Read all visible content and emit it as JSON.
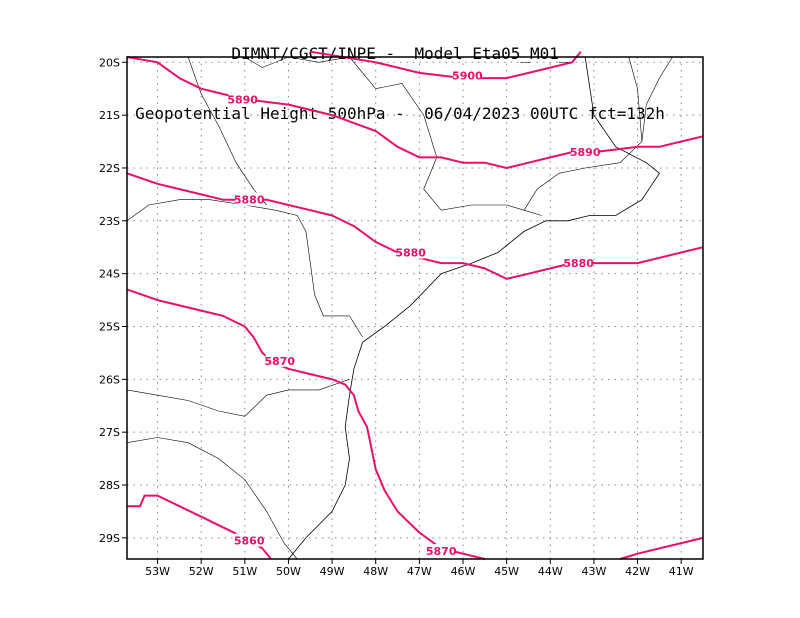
{
  "title": {
    "line1": "DIMNT/CGCT/INPE -  Model Eta05_M01_",
    "line2": "Geopotential Height 500hPa -  06/04/2023 00UTC fct=132h"
  },
  "colors": {
    "contour": "#e8106a",
    "coast": "#000000",
    "grid": "#888888"
  },
  "axes": {
    "lon_range": [
      -53.7,
      -40.5
    ],
    "lat_range": [
      -29.4,
      -19.9
    ],
    "x_ticks": [
      "53W",
      "52W",
      "51W",
      "50W",
      "49W",
      "48W",
      "47W",
      "46W",
      "45W",
      "44W",
      "43W",
      "42W",
      "41W"
    ],
    "y_ticks": [
      "20S",
      "21S",
      "22S",
      "23S",
      "24S",
      "25S",
      "26S",
      "27S",
      "28S",
      "29S"
    ],
    "grid": true
  },
  "chart_data": {
    "type": "contour",
    "variable": "Geopotential Height 500hPa",
    "contours": [
      {
        "level": 5900,
        "label": "5900",
        "points": [
          [
            -49.5,
            -19.8
          ],
          [
            -48,
            -20.0
          ],
          [
            -47,
            -20.2
          ],
          [
            -46,
            -20.3
          ],
          [
            -45,
            -20.3
          ],
          [
            -44.5,
            -20.2
          ],
          [
            -44,
            -20.1
          ],
          [
            -43.5,
            -20.0
          ],
          [
            -43.3,
            -19.8
          ]
        ]
      },
      {
        "level": 5890,
        "label": "5890",
        "points": [
          [
            -53.7,
            -19.9
          ],
          [
            -53,
            -20.0
          ],
          [
            -52.5,
            -20.3
          ],
          [
            -52,
            -20.5
          ],
          [
            -51.5,
            -20.6
          ],
          [
            -51,
            -20.7
          ],
          [
            -50,
            -20.8
          ],
          [
            -49,
            -21.0
          ],
          [
            -48,
            -21.3
          ],
          [
            -47.5,
            -21.6
          ],
          [
            -47,
            -21.8
          ],
          [
            -46.5,
            -21.8
          ],
          [
            -46,
            -21.9
          ],
          [
            -45.5,
            -21.9
          ],
          [
            -45,
            -22.0
          ],
          [
            -44.5,
            -21.9
          ],
          [
            -44,
            -21.8
          ],
          [
            -43.5,
            -21.7
          ],
          [
            -43,
            -21.7
          ],
          [
            -42,
            -21.6
          ],
          [
            -41.5,
            -21.6
          ],
          [
            -41,
            -21.5
          ],
          [
            -40.5,
            -21.4
          ]
        ]
      },
      {
        "level": 5880,
        "label": "5880",
        "points": [
          [
            -53.7,
            -22.1
          ],
          [
            -53,
            -22.3
          ],
          [
            -52.5,
            -22.4
          ],
          [
            -52,
            -22.5
          ],
          [
            -51.5,
            -22.6
          ],
          [
            -51,
            -22.6
          ],
          [
            -50.5,
            -22.6
          ],
          [
            -50,
            -22.7
          ],
          [
            -49.5,
            -22.8
          ],
          [
            -49,
            -22.9
          ],
          [
            -48.5,
            -23.1
          ],
          [
            -48,
            -23.4
          ],
          [
            -47.5,
            -23.6
          ],
          [
            -47,
            -23.7
          ],
          [
            -46.5,
            -23.8
          ],
          [
            -46,
            -23.8
          ],
          [
            -45.5,
            -23.9
          ],
          [
            -45,
            -24.1
          ],
          [
            -44.5,
            -24.0
          ],
          [
            -44,
            -23.9
          ],
          [
            -43.5,
            -23.8
          ],
          [
            -43,
            -23.8
          ],
          [
            -42.5,
            -23.8
          ],
          [
            -42,
            -23.8
          ],
          [
            -41.5,
            -23.7
          ],
          [
            -41,
            -23.6
          ],
          [
            -40.5,
            -23.5
          ]
        ]
      },
      {
        "level": 5870,
        "label": "5870",
        "points": [
          [
            -53.7,
            -24.3
          ],
          [
            -53,
            -24.5
          ],
          [
            -52.5,
            -24.6
          ],
          [
            -52,
            -24.7
          ],
          [
            -51.5,
            -24.8
          ],
          [
            -51,
            -25.0
          ],
          [
            -50.8,
            -25.2
          ],
          [
            -50.6,
            -25.5
          ],
          [
            -50.3,
            -25.7
          ],
          [
            -50,
            -25.8
          ],
          [
            -49.5,
            -25.9
          ],
          [
            -49,
            -26.0
          ],
          [
            -48.7,
            -26.1
          ],
          [
            -48.5,
            -26.3
          ],
          [
            -48.4,
            -26.6
          ],
          [
            -48.2,
            -26.9
          ],
          [
            -48.1,
            -27.3
          ],
          [
            -48,
            -27.7
          ],
          [
            -47.8,
            -28.1
          ],
          [
            -47.5,
            -28.5
          ],
          [
            -47,
            -28.9
          ],
          [
            -46.5,
            -29.2
          ],
          [
            -46,
            -29.3
          ],
          [
            -45.5,
            -29.4
          ]
        ]
      },
      {
        "level": 5860,
        "label": "5860",
        "points": [
          [
            -53.7,
            -28.4
          ],
          [
            -53.4,
            -28.4
          ],
          [
            -53.3,
            -28.2
          ],
          [
            -53,
            -28.2
          ],
          [
            -52.5,
            -28.4
          ],
          [
            -52,
            -28.6
          ],
          [
            -51.5,
            -28.8
          ],
          [
            -51,
            -29.0
          ],
          [
            -50.6,
            -29.2
          ],
          [
            -50.4,
            -29.4
          ]
        ]
      },
      {
        "level": 5870,
        "label": "",
        "points": [
          [
            -42.4,
            -29.4
          ],
          [
            -42,
            -29.3
          ],
          [
            -41.5,
            -29.2
          ],
          [
            -41,
            -29.1
          ],
          [
            -40.5,
            -29.0
          ]
        ]
      }
    ],
    "labels": [
      {
        "text": "5900",
        "lon": -45.9,
        "lat": -20.25
      },
      {
        "text": "5890",
        "lon": -51.05,
        "lat": -20.7
      },
      {
        "text": "5890",
        "lon": -43.2,
        "lat": -21.7
      },
      {
        "text": "5880",
        "lon": -50.9,
        "lat": -22.6
      },
      {
        "text": "5880",
        "lon": -47.2,
        "lat": -23.6
      },
      {
        "text": "5880",
        "lon": -43.35,
        "lat": -23.8
      },
      {
        "text": "5870",
        "lon": -50.2,
        "lat": -25.65
      },
      {
        "text": "5870",
        "lon": -46.5,
        "lat": -29.25
      },
      {
        "text": "5860",
        "lon": -50.9,
        "lat": -29.05
      }
    ],
    "coastline": [
      [
        -43.2,
        -19.9
      ],
      [
        -43.0,
        -21.0
      ],
      [
        -42.5,
        -21.6
      ],
      [
        -41.8,
        -21.9
      ],
      [
        -41.5,
        -22.1
      ],
      [
        -41.9,
        -22.6
      ],
      [
        -42.5,
        -22.9
      ],
      [
        -43.1,
        -22.9
      ],
      [
        -43.6,
        -23.0
      ],
      [
        -44.1,
        -23.0
      ],
      [
        -44.6,
        -23.2
      ],
      [
        -45.2,
        -23.6
      ],
      [
        -45.8,
        -23.8
      ],
      [
        -46.5,
        -24.0
      ],
      [
        -47.2,
        -24.6
      ],
      [
        -47.8,
        -25.0
      ],
      [
        -48.3,
        -25.3
      ],
      [
        -48.5,
        -25.8
      ],
      [
        -48.6,
        -26.3
      ],
      [
        -48.7,
        -26.9
      ],
      [
        -48.6,
        -27.5
      ],
      [
        -48.7,
        -28.0
      ],
      [
        -49.0,
        -28.5
      ],
      [
        -49.6,
        -29.0
      ],
      [
        -50.0,
        -29.4
      ]
    ],
    "borders": [
      [
        [
          -53.7,
          -23.0
        ],
        [
          -53.2,
          -22.7
        ],
        [
          -52.5,
          -22.6
        ],
        [
          -51.8,
          -22.6
        ],
        [
          -51.0,
          -22.7
        ],
        [
          -50.3,
          -22.8
        ],
        [
          -49.8,
          -22.9
        ],
        [
          -49.6,
          -23.2
        ],
        [
          -49.5,
          -23.8
        ],
        [
          -49.4,
          -24.4
        ],
        [
          -49.2,
          -24.8
        ],
        [
          -48.6,
          -24.8
        ],
        [
          -48.3,
          -25.2
        ]
      ],
      [
        [
          -53.7,
          -26.2
        ],
        [
          -53.0,
          -26.3
        ],
        [
          -52.3,
          -26.4
        ],
        [
          -51.6,
          -26.6
        ],
        [
          -51.0,
          -26.7
        ],
        [
          -50.5,
          -26.3
        ],
        [
          -50.0,
          -26.2
        ],
        [
          -49.3,
          -26.2
        ],
        [
          -48.6,
          -26.0
        ]
      ],
      [
        [
          -53.7,
          -27.2
        ],
        [
          -53.0,
          -27.1
        ],
        [
          -52.3,
          -27.2
        ],
        [
          -51.6,
          -27.5
        ],
        [
          -51.0,
          -27.9
        ],
        [
          -50.5,
          -28.5
        ],
        [
          -50.1,
          -29.1
        ],
        [
          -49.8,
          -29.4
        ]
      ],
      [
        [
          -52.3,
          -19.9
        ],
        [
          -52.0,
          -20.6
        ],
        [
          -51.6,
          -21.2
        ],
        [
          -51.2,
          -21.9
        ],
        [
          -50.8,
          -22.4
        ],
        [
          -50.5,
          -22.7
        ]
      ],
      [
        [
          -51.0,
          -19.9
        ],
        [
          -50.6,
          -20.1
        ],
        [
          -50.0,
          -19.9
        ],
        [
          -49.3,
          -20.0
        ],
        [
          -48.6,
          -19.9
        ],
        [
          -48.0,
          -20.5
        ],
        [
          -47.4,
          -20.4
        ],
        [
          -46.9,
          -21.0
        ],
        [
          -46.6,
          -21.8
        ],
        [
          -46.9,
          -22.4
        ],
        [
          -46.5,
          -22.8
        ],
        [
          -45.8,
          -22.7
        ],
        [
          -45.0,
          -22.7
        ],
        [
          -44.6,
          -22.8
        ],
        [
          -44.2,
          -22.9
        ]
      ],
      [
        [
          -44.6,
          -22.8
        ],
        [
          -44.3,
          -22.4
        ],
        [
          -43.8,
          -22.1
        ],
        [
          -43.2,
          -22.0
        ],
        [
          -42.4,
          -21.9
        ],
        [
          -41.9,
          -21.5
        ],
        [
          -41.8,
          -20.8
        ],
        [
          -41.5,
          -20.3
        ],
        [
          -41.2,
          -19.9
        ]
      ],
      [
        [
          -42.2,
          -19.9
        ],
        [
          -42.0,
          -20.5
        ],
        [
          -41.9,
          -21.5
        ]
      ]
    ]
  }
}
